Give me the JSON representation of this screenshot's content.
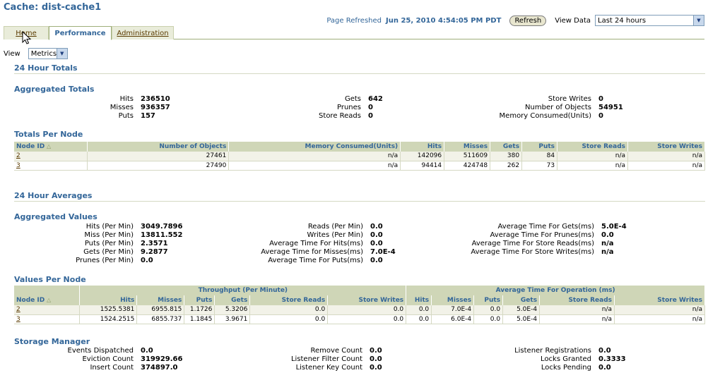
{
  "title": "Cache: dist-cache1",
  "header": {
    "refreshed_label": "Page Refreshed",
    "refreshed_value": "Jun 25, 2010 4:54:05 PM PDT",
    "refresh_button": "Refresh",
    "view_data_label": "View Data",
    "view_data_value": "Last 24 hours"
  },
  "tabs": [
    "Home",
    "Performance",
    "Administration"
  ],
  "view": {
    "label": "View",
    "value": "Metrics"
  },
  "totals": {
    "heading": "24 Hour Totals",
    "aggregated_heading": "Aggregated Totals",
    "col1": [
      {
        "k": "Hits",
        "v": "236510"
      },
      {
        "k": "Misses",
        "v": "936357"
      },
      {
        "k": "Puts",
        "v": "157"
      }
    ],
    "col2": [
      {
        "k": "Gets",
        "v": "642"
      },
      {
        "k": "Prunes",
        "v": "0"
      },
      {
        "k": "Store Reads",
        "v": "0"
      }
    ],
    "col3": [
      {
        "k": "Store Writes",
        "v": "0"
      },
      {
        "k": "Number of Objects",
        "v": "54951"
      },
      {
        "k": "Memory Consumed(Units)",
        "v": "0"
      }
    ]
  },
  "totals_per_node": {
    "heading": "Totals Per Node",
    "columns": [
      "Node ID",
      "Number of Objects",
      "Memory Consumed(Units)",
      "Hits",
      "Misses",
      "Gets",
      "Puts",
      "Store Reads",
      "Store Writes"
    ],
    "rows": [
      [
        "2",
        "27461",
        "n/a",
        "142096",
        "511609",
        "380",
        "84",
        "n/a",
        "n/a"
      ],
      [
        "3",
        "27490",
        "n/a",
        "94414",
        "424748",
        "262",
        "73",
        "n/a",
        "n/a"
      ]
    ]
  },
  "averages": {
    "heading": "24 Hour Averages",
    "aggregated_heading": "Aggregated Values",
    "col1": [
      {
        "k": "Hits (Per Min)",
        "v": "3049.7896"
      },
      {
        "k": "Miss (Per Min)",
        "v": "13811.552"
      },
      {
        "k": "Puts (Per Min)",
        "v": "2.3571"
      },
      {
        "k": "Gets (Per Min)",
        "v": "9.2877"
      },
      {
        "k": "Prunes (Per Min)",
        "v": "0.0"
      }
    ],
    "col2": [
      {
        "k": "Reads (Per Min)",
        "v": "0.0"
      },
      {
        "k": "Writes (Per Min)",
        "v": "0.0"
      },
      {
        "k": "Average Time For Hits(ms)",
        "v": "0.0"
      },
      {
        "k": "Average Time for Misses(ms)",
        "v": "7.0E-4"
      },
      {
        "k": "Average Time For Puts(ms)",
        "v": "0.0"
      }
    ],
    "col3": [
      {
        "k": "Average Time For Gets(ms)",
        "v": "5.0E-4"
      },
      {
        "k": "Average Time For Prunes(ms)",
        "v": "0.0"
      },
      {
        "k": "Average Time For Store Reads(ms)",
        "v": "n/a"
      },
      {
        "k": "Average Time For Store Writes(ms)",
        "v": "n/a"
      }
    ]
  },
  "values_per_node": {
    "heading": "Values Per Node",
    "group1": "Throughput (Per Minute)",
    "group2": "Average Time For Operation (ms)",
    "columns": [
      "Node ID",
      "Hits",
      "Misses",
      "Puts",
      "Gets",
      "Store Reads",
      "Store Writes",
      "Hits",
      "Misses",
      "Puts",
      "Gets",
      "Store Reads",
      "Store Writes"
    ],
    "rows": [
      [
        "2",
        "1525.5381",
        "6955.815",
        "1.1726",
        "5.3206",
        "0.0",
        "0.0",
        "0.0",
        "7.0E-4",
        "0.0",
        "5.0E-4",
        "n/a",
        "n/a"
      ],
      [
        "3",
        "1524.2515",
        "6855.737",
        "1.1845",
        "3.9671",
        "0.0",
        "0.0",
        "0.0",
        "6.0E-4",
        "0.0",
        "5.0E-4",
        "n/a",
        "n/a"
      ]
    ]
  },
  "storage": {
    "heading": "Storage Manager",
    "col1": [
      {
        "k": "Events Dispatched",
        "v": "0.0"
      },
      {
        "k": "Eviction Count",
        "v": "319929.66"
      },
      {
        "k": "Insert Count",
        "v": "374897.0"
      }
    ],
    "col2": [
      {
        "k": "Remove Count",
        "v": "0.0"
      },
      {
        "k": "Listener Filter Count",
        "v": "0.0"
      },
      {
        "k": "Listener Key Count",
        "v": "0.0"
      }
    ],
    "col3": [
      {
        "k": "Listener Registrations",
        "v": "0.0"
      },
      {
        "k": "Locks Granted",
        "v": "0.3333"
      },
      {
        "k": "Locks Pending",
        "v": "0.0"
      }
    ]
  }
}
